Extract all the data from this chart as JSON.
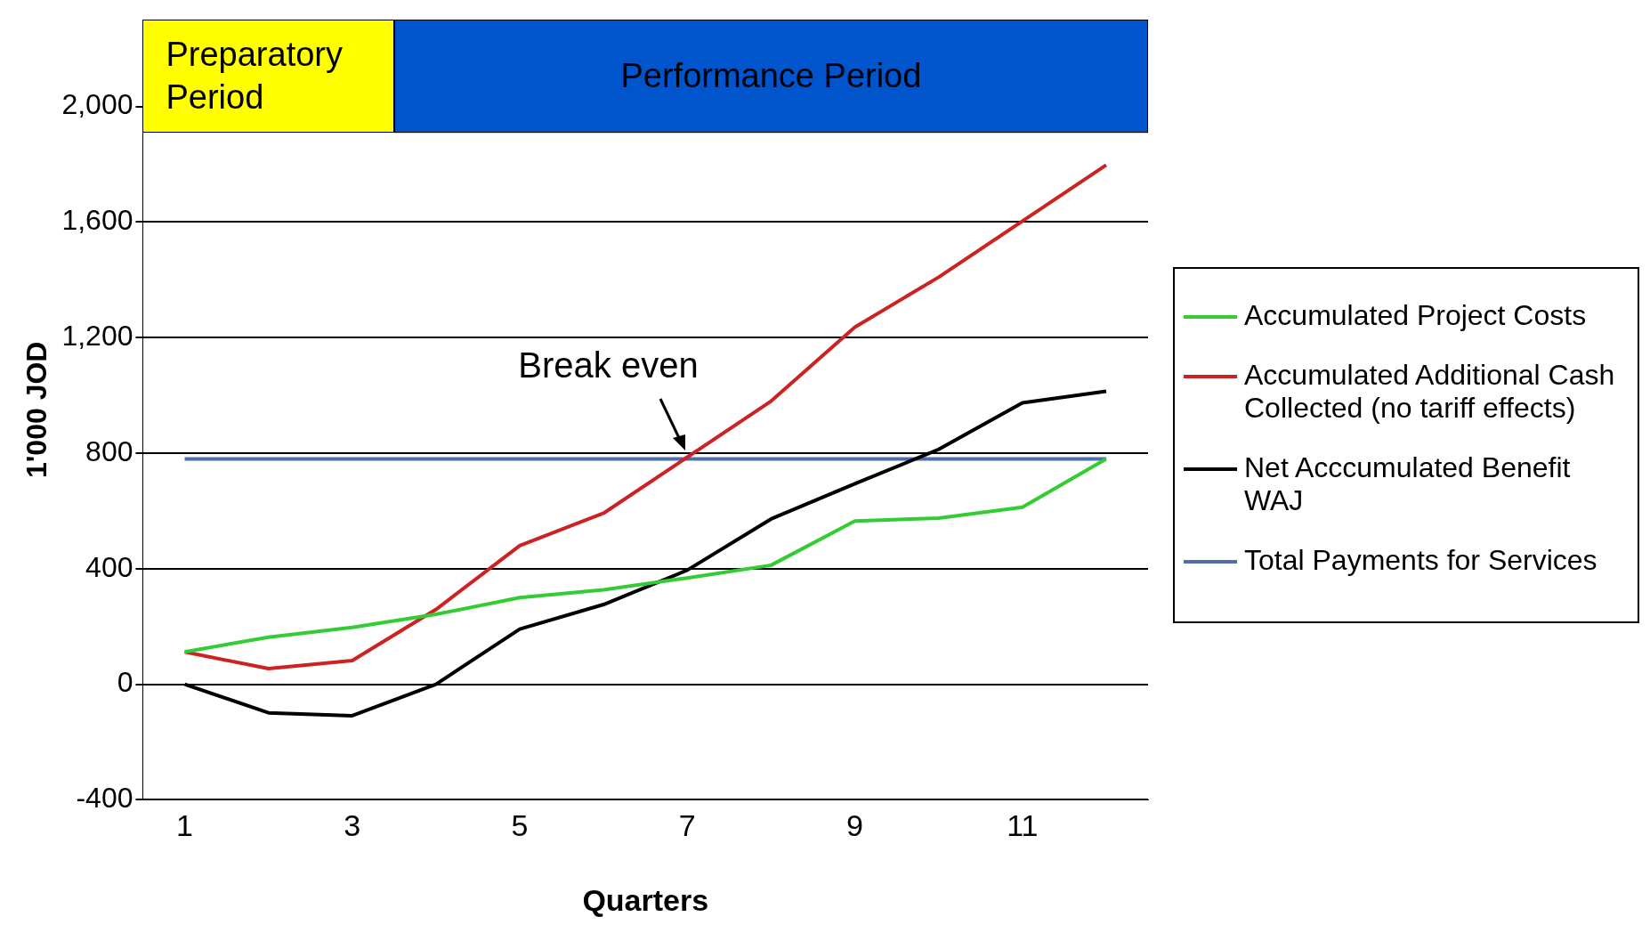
{
  "chart_data": {
    "type": "line",
    "xlabel": "Quarters",
    "ylabel": "1'000 JOD",
    "x": [
      1,
      2,
      3,
      4,
      5,
      6,
      7,
      8,
      9,
      10,
      11,
      12
    ],
    "series": [
      {
        "name": "Accumulated Project Costs",
        "color": "#33cc33",
        "values": [
          112,
          163,
          197,
          242,
          300,
          327,
          368,
          412,
          565,
          575,
          613,
          780
        ]
      },
      {
        "name": "Accumulated Additional Cash Collected (no tariff effects)",
        "color": "#cc2222",
        "values": [
          112,
          54,
          82,
          259,
          480,
          592,
          786,
          980,
          1236,
          1409,
          1603,
          1797
        ]
      },
      {
        "name": "Net Acccumulated Benefit WAJ",
        "color": "#000000",
        "values": [
          0,
          -99,
          -109,
          0,
          191,
          276,
          395,
          572,
          694,
          813,
          974,
          1014
        ]
      },
      {
        "name": "Total Payments for Services",
        "color": "#4f6fa8",
        "values": [
          780,
          780,
          780,
          780,
          780,
          780,
          780,
          780,
          780,
          780,
          780,
          780
        ]
      }
    ],
    "xlim": [
      0.5,
      12.5
    ],
    "xticks": [
      1,
      3,
      5,
      7,
      9,
      11
    ],
    "ylim": [
      -400,
      2300
    ],
    "yticks": [
      {
        "value": -400,
        "label": "-400"
      },
      0,
      400,
      800,
      {
        "value": 1200,
        "label": "1,200"
      },
      {
        "value": 1600,
        "label": "1,600"
      },
      {
        "value": 2000,
        "label": "2,000"
      }
    ],
    "grid": "y",
    "legend": "right",
    "marker": "none",
    "line_style": "solid",
    "bands": [
      {
        "axis": "x",
        "from": 0.5,
        "to": 3.5,
        "label": "Preparatory Period",
        "color": "#ffff00"
      },
      {
        "axis": "x",
        "from": 3.5,
        "to": 12.5,
        "label": "Performance Period",
        "color": "#0055cc"
      }
    ],
    "annotations": [
      {
        "text": "Break even",
        "x": 7,
        "y": 790
      }
    ]
  }
}
